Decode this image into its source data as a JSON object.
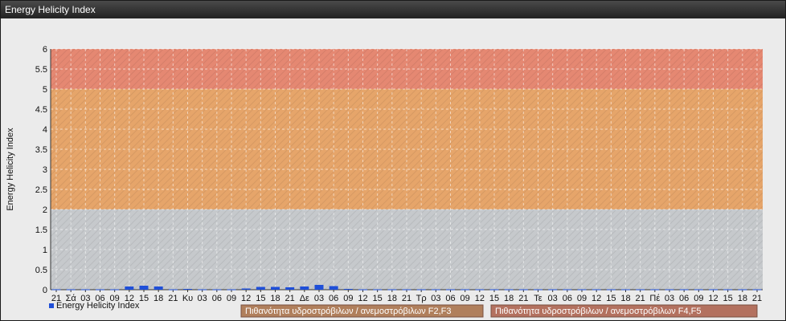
{
  "window": {
    "title": "Energy Helicity Index"
  },
  "chart_data": {
    "type": "bar",
    "title": "",
    "xlabel": "",
    "ylabel": "Energy Helicity Index",
    "ylim": [
      0,
      6
    ],
    "yticks": [
      0,
      0.5,
      1,
      1.5,
      2,
      2.5,
      3,
      3.5,
      4,
      4.5,
      5,
      5.5,
      6
    ],
    "grid": true,
    "categories": [
      "21",
      "Σά",
      "03",
      "06",
      "09",
      "12",
      "15",
      "18",
      "21",
      "Κυ",
      "03",
      "06",
      "09",
      "12",
      "15",
      "18",
      "21",
      "Δε",
      "03",
      "06",
      "09",
      "12",
      "15",
      "18",
      "21",
      "Τρ",
      "03",
      "06",
      "09",
      "12",
      "15",
      "18",
      "21",
      "Τε",
      "03",
      "06",
      "09",
      "12",
      "15",
      "18",
      "21",
      "Πέ",
      "03",
      "06",
      "09",
      "12",
      "15",
      "18",
      "21"
    ],
    "series": [
      {
        "name": "Energy Helicity Index",
        "color": "#1f4fd8",
        "values": [
          0.01,
          0.01,
          0.01,
          0.01,
          0.01,
          0.08,
          0.1,
          0.08,
          0.01,
          0.02,
          0.01,
          0.01,
          0.01,
          0.03,
          0.07,
          0.07,
          0.06,
          0.08,
          0.12,
          0.09,
          0.02,
          0.01,
          0.01,
          0.01,
          0.01,
          0.01,
          0.01,
          0.01,
          0.01,
          0.01,
          0.01,
          0.01,
          0.01,
          0.01,
          0.01,
          0.01,
          0.01,
          0.01,
          0.01,
          0.01,
          0.01,
          0.01,
          0.01,
          0.01,
          0.01,
          0.01,
          0.01,
          0.01,
          0.01
        ]
      }
    ],
    "bands": [
      {
        "from": 0,
        "to": 2,
        "color": "#c6c9cc"
      },
      {
        "from": 2,
        "to": 5,
        "color": "#e6a56a",
        "label": "Πιθανότητα υδροστρόβιλων / ανεμοστρόβιλων F2,F3"
      },
      {
        "from": 5,
        "to": 6,
        "color": "#e58872",
        "label": "Πιθανότητα υδροστρόβιλων / ανεμοστρόβιλων F4,F5"
      }
    ],
    "legend_position": "bottom"
  }
}
